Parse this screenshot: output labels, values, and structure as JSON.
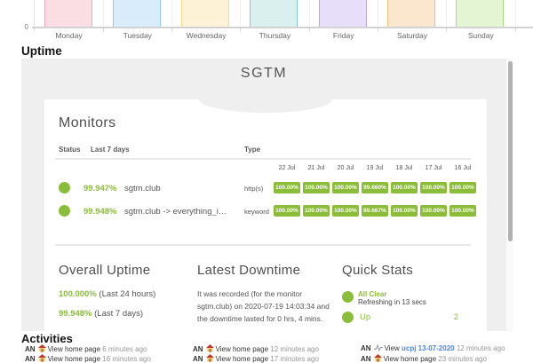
{
  "page": {
    "uptime_heading": "Uptime",
    "activities_heading": "Activities"
  },
  "colors": {
    "accent_green": "#8bbd3a",
    "link_blue": "#4c86e8",
    "widget_bg": "#efefef"
  },
  "chart_data": {
    "type": "bar",
    "title": "",
    "xlabel": "",
    "ylabel": "",
    "categories": [
      "Monday",
      "Tuesday",
      "Wednesday",
      "Thursday",
      "Friday",
      "Saturday",
      "Sunday"
    ],
    "values": [
      1,
      1,
      1,
      1,
      1,
      1,
      1
    ],
    "ylim": [
      0,
      1
    ],
    "y_tick_labels": [
      "0"
    ],
    "grid": true,
    "note": "bars are clipped by the top edge of the screenshot; only the 0 tick is visible",
    "bar_colors": [
      {
        "fill": "#fbdde4",
        "border": "#f4a7b9"
      },
      {
        "fill": "#d9ecfb",
        "border": "#92c8f0"
      },
      {
        "fill": "#fdf1d6",
        "border": "#f8d88a"
      },
      {
        "fill": "#daf0ee",
        "border": "#84cdc9"
      },
      {
        "fill": "#e7def9",
        "border": "#bda4f2"
      },
      {
        "fill": "#fbe6ce",
        "border": "#f5be85"
      },
      {
        "fill": "#e4f5d3",
        "border": "#a8da79"
      }
    ]
  },
  "status_page": {
    "title": "SGTM",
    "monitors": {
      "heading": "Monitors",
      "columns": {
        "status": "Status",
        "last7": "Last 7 days",
        "type": "Type"
      },
      "dates": [
        "22 Jul",
        "21 Jul",
        "20 Jul",
        "19 Jul",
        "18 Jul",
        "17 Jul",
        "16 Jul"
      ],
      "rows": [
        {
          "status": "up",
          "uptime": "99.947%",
          "name": "sgtm.club",
          "type": "http(s)",
          "daily": [
            "100.00%",
            "100.00%",
            "100.00%",
            "99.660%",
            "100.00%",
            "100.00%",
            "100.00%"
          ]
        },
        {
          "status": "up",
          "uptime": "99.948%",
          "name": "sgtm.club -> everything_i…",
          "type": "keyword",
          "daily": [
            "100.00%",
            "100.00%",
            "100.00%",
            "99.667%",
            "100.00%",
            "100.00%",
            "100.00%"
          ]
        }
      ]
    },
    "overall_uptime": {
      "heading": "Overall Uptime",
      "stats": [
        {
          "value": "100.000%",
          "label": " (Last 24 hours)"
        },
        {
          "value": "99.948%",
          "label": " (Last 7 days)"
        }
      ]
    },
    "latest_downtime": {
      "heading": "Latest Downtime",
      "text": "It was recorded (for the monitor sgtm.club) on 2020-07-19 14:03:34 and the downtime lasted for 0 hrs, 4 mins."
    },
    "quick_stats": {
      "heading": "Quick Stats",
      "items": [
        {
          "label": "All Clear",
          "sub": "Refreshing in 13 secs",
          "value": ""
        },
        {
          "label": "Up",
          "sub": "",
          "value": "2"
        }
      ]
    }
  },
  "activities": {
    "heading": "Activities",
    "columns": [
      [
        {
          "prefix": "AN",
          "icon": "home",
          "action": "View home page",
          "link": "",
          "time": "6 minutes ago"
        },
        {
          "prefix": "AN",
          "icon": "home",
          "action": "View home page",
          "link": "",
          "time": "16 minutes ago"
        }
      ],
      [
        {
          "prefix": "AN",
          "icon": "home",
          "action": "View home page",
          "link": "",
          "time": "12 minutes ago"
        },
        {
          "prefix": "AN",
          "icon": "home",
          "action": "View home page",
          "link": "",
          "time": "17 minutes ago"
        }
      ],
      [
        {
          "prefix": "AN",
          "icon": "pulse",
          "action": "View",
          "link": "ucpj 13-07-2020",
          "time": "12 minutes ago"
        },
        {
          "prefix": "AN",
          "icon": "home",
          "action": "View home page",
          "link": "",
          "time": "23 minutes ago"
        }
      ]
    ]
  }
}
